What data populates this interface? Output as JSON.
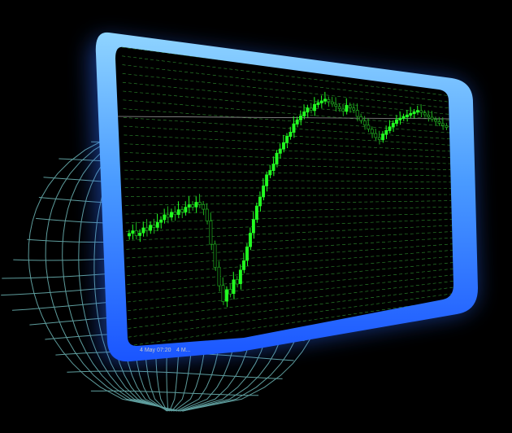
{
  "colors": {
    "background": "#000000",
    "frame_gradient_top": "#8fd0ff",
    "frame_gradient_bottom": "#1a5cff",
    "glow": "#2a7bff",
    "chart_background": "#000000",
    "grid_line": "#3fbf3f",
    "candle_up": "#22ff22",
    "candle_down": "#1fae1f",
    "wireframe": "#6fb9b9"
  },
  "icons": [
    "wireframe-globe-icon"
  ],
  "chart": {
    "axis_label_1": "4 May 07:20",
    "axis_label_2": "4 M..."
  },
  "chart_data": {
    "type": "candlestick",
    "title": "",
    "xlabel": "",
    "ylabel": "",
    "grid": true,
    "x_tick_labels": [
      "4 May 07:20",
      "4 M..."
    ],
    "ylim": [
      0,
      100
    ],
    "closes": [
      36,
      37,
      35,
      36,
      38,
      37,
      39,
      38,
      40,
      41,
      43,
      42,
      44,
      43,
      45,
      44,
      46,
      47,
      46,
      48,
      47,
      45,
      40,
      30,
      20,
      12,
      5,
      10,
      8,
      14,
      12,
      18,
      22,
      28,
      34,
      40,
      46,
      50,
      55,
      60,
      62,
      65,
      70,
      72,
      75,
      78,
      80,
      84,
      86,
      88,
      90,
      92,
      91,
      94,
      95,
      96,
      97,
      96,
      95,
      94,
      93,
      92,
      95,
      94,
      93,
      90,
      88,
      86,
      84,
      82,
      80,
      79,
      82,
      84,
      86,
      88,
      90,
      91,
      92,
      93,
      94,
      95,
      96,
      95,
      94,
      93,
      92,
      91,
      90,
      89,
      88
    ]
  }
}
